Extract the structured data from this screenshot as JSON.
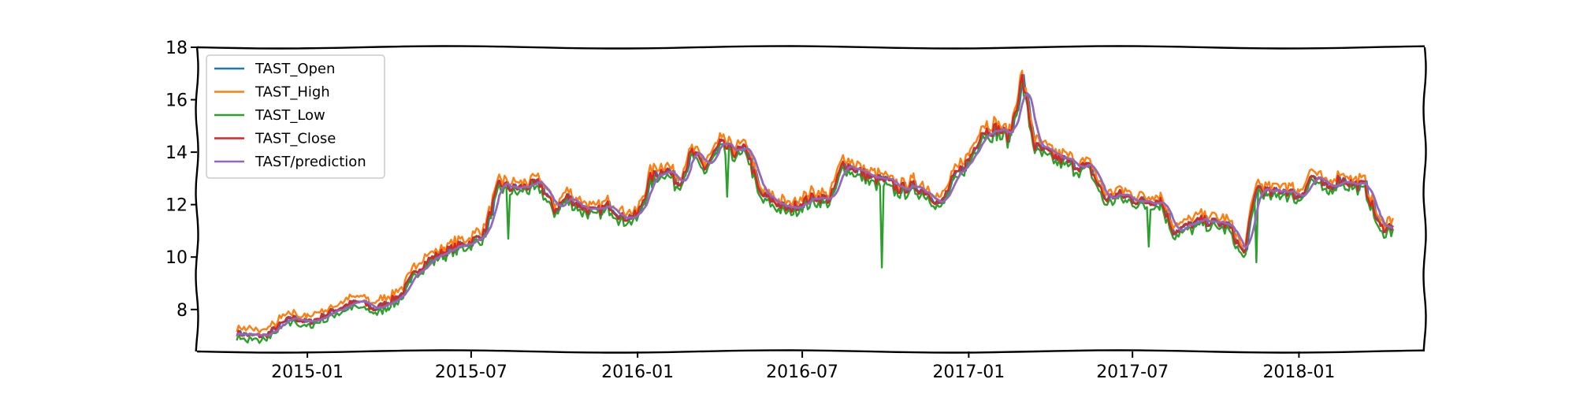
{
  "chart_data": {
    "type": "line",
    "title": "",
    "xlabel": "",
    "ylabel": "",
    "xlim": [
      "2014-09-01",
      "2018-05-20"
    ],
    "ylim": [
      6.4,
      18.0
    ],
    "x_ticks": [
      {
        "date": "2015-01-01",
        "label": "2015-01"
      },
      {
        "date": "2015-07-01",
        "label": "2015-07"
      },
      {
        "date": "2016-01-01",
        "label": "2016-01"
      },
      {
        "date": "2016-07-01",
        "label": "2016-07"
      },
      {
        "date": "2017-01-01",
        "label": "2017-01"
      },
      {
        "date": "2017-07-01",
        "label": "2017-07"
      },
      {
        "date": "2018-01-01",
        "label": "2018-01"
      }
    ],
    "y_ticks": [
      8,
      10,
      12,
      14,
      16,
      18
    ],
    "grid": false,
    "legend_position": "top-left",
    "series": [
      {
        "name": "TAST_Open",
        "color": "#1f77b4"
      },
      {
        "name": "TAST_High",
        "color": "#ff7f0e"
      },
      {
        "name": "TAST_Low",
        "color": "#2ca02c"
      },
      {
        "name": "TAST_Close",
        "color": "#d62728"
      },
      {
        "name": "TAST/prediction",
        "color": "#9467bd"
      }
    ],
    "x": [
      "2014-10-15",
      "2014-11-01",
      "2014-11-15",
      "2014-12-01",
      "2014-12-15",
      "2015-01-01",
      "2015-01-15",
      "2015-02-01",
      "2015-02-15",
      "2015-03-01",
      "2015-03-15",
      "2015-04-01",
      "2015-04-15",
      "2015-05-01",
      "2015-05-15",
      "2015-06-01",
      "2015-06-15",
      "2015-07-01",
      "2015-07-15",
      "2015-08-01",
      "2015-08-15",
      "2015-09-01",
      "2015-09-15",
      "2015-10-01",
      "2015-10-15",
      "2015-11-01",
      "2015-11-15",
      "2015-12-01",
      "2015-12-15",
      "2016-01-01",
      "2016-01-15",
      "2016-02-01",
      "2016-02-15",
      "2016-03-01",
      "2016-03-15",
      "2016-04-01",
      "2016-04-15",
      "2016-05-01",
      "2016-05-15",
      "2016-06-01",
      "2016-06-15",
      "2016-07-01",
      "2016-07-15",
      "2016-08-01",
      "2016-08-15",
      "2016-09-01",
      "2016-09-15",
      "2016-10-01",
      "2016-10-15",
      "2016-11-01",
      "2016-11-15",
      "2016-12-01",
      "2016-12-15",
      "2017-01-01",
      "2017-01-15",
      "2017-02-01",
      "2017-02-15",
      "2017-03-01",
      "2017-03-15",
      "2017-04-01",
      "2017-04-15",
      "2017-05-01",
      "2017-05-15",
      "2017-06-01",
      "2017-06-15",
      "2017-07-01",
      "2017-07-15",
      "2017-08-01",
      "2017-08-15",
      "2017-09-01",
      "2017-09-15",
      "2017-10-01",
      "2017-10-15",
      "2017-11-01",
      "2017-11-15",
      "2017-12-01",
      "2017-12-15",
      "2018-01-01",
      "2018-01-15",
      "2018-02-01",
      "2018-02-15",
      "2018-03-01",
      "2018-03-15",
      "2018-04-01",
      "2018-04-15"
    ],
    "close": [
      7.1,
      7.0,
      7.0,
      7.4,
      7.7,
      7.5,
      7.7,
      8.0,
      8.2,
      8.3,
      8.0,
      8.3,
      8.6,
      9.5,
      9.9,
      10.2,
      10.4,
      10.6,
      10.9,
      12.8,
      12.6,
      12.7,
      12.8,
      11.8,
      12.3,
      11.9,
      11.7,
      12.0,
      11.5,
      11.6,
      13.0,
      13.4,
      12.8,
      14.0,
      13.4,
      14.3,
      14.0,
      14.1,
      12.4,
      12.1,
      11.8,
      12.1,
      12.3,
      12.2,
      13.6,
      13.3,
      13.0,
      12.9,
      12.6,
      12.7,
      12.5,
      12.0,
      13.0,
      13.7,
      14.8,
      14.9,
      14.6,
      16.8,
      14.2,
      13.9,
      13.7,
      13.5,
      13.4,
      12.2,
      12.4,
      12.2,
      12.1,
      12.2,
      11.0,
      11.2,
      11.4,
      11.3,
      11.2,
      10.1,
      12.7,
      12.4,
      12.6,
      12.3,
      13.1,
      12.6,
      13.0,
      12.8,
      12.7,
      11.1,
      11.2
    ]
  }
}
